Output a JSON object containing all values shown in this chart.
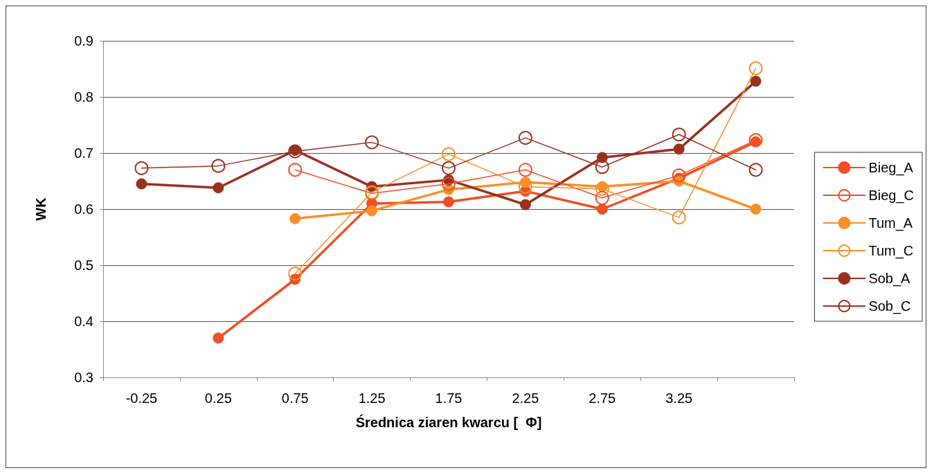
{
  "chart_data": {
    "type": "line",
    "xlabel": "Średnica ziaren kwarcu [  Φ]",
    "ylabel": "WK",
    "categories": [
      "-0.25",
      "0.25",
      "0.75",
      "1.25",
      "1.75",
      "2.25",
      "2.75",
      "3.25",
      null
    ],
    "ylim": [
      0.3,
      0.9
    ],
    "yticks": [
      0.3,
      0.4,
      0.5,
      0.6,
      0.7,
      0.8,
      0.9
    ],
    "grid": "y",
    "legend": "right",
    "marker": "circle",
    "line_style": "solid",
    "series": [
      {
        "name": "Bieg_A",
        "color": "#f04e23",
        "values": [
          null,
          0.37,
          0.475,
          0.61,
          0.613,
          0.632,
          0.6,
          0.655,
          0.72
        ]
      },
      {
        "name": "Bieg_C",
        "color": "#f04e23",
        "values": [
          null,
          null,
          0.67,
          0.628,
          0.645,
          0.67,
          0.62,
          0.66,
          0.723
        ]
      },
      {
        "name": "Tum_A",
        "color": "#f7902b",
        "values": [
          null,
          null,
          0.583,
          0.597,
          0.635,
          0.648,
          0.64,
          0.65,
          0.6
        ]
      },
      {
        "name": "Tum_C",
        "color": "#f7902b",
        "values": [
          null,
          null,
          0.485,
          0.63,
          0.698,
          0.64,
          0.636,
          0.585,
          0.851
        ]
      },
      {
        "name": "Sob_A",
        "color": "#99311f",
        "values": [
          0.645,
          0.638,
          0.705,
          0.64,
          0.652,
          0.608,
          0.692,
          0.707,
          0.828
        ]
      },
      {
        "name": "Sob_C",
        "color": "#99311f",
        "values": [
          0.673,
          0.677,
          0.703,
          0.719,
          0.673,
          0.727,
          0.675,
          0.733,
          0.67
        ]
      }
    ]
  }
}
